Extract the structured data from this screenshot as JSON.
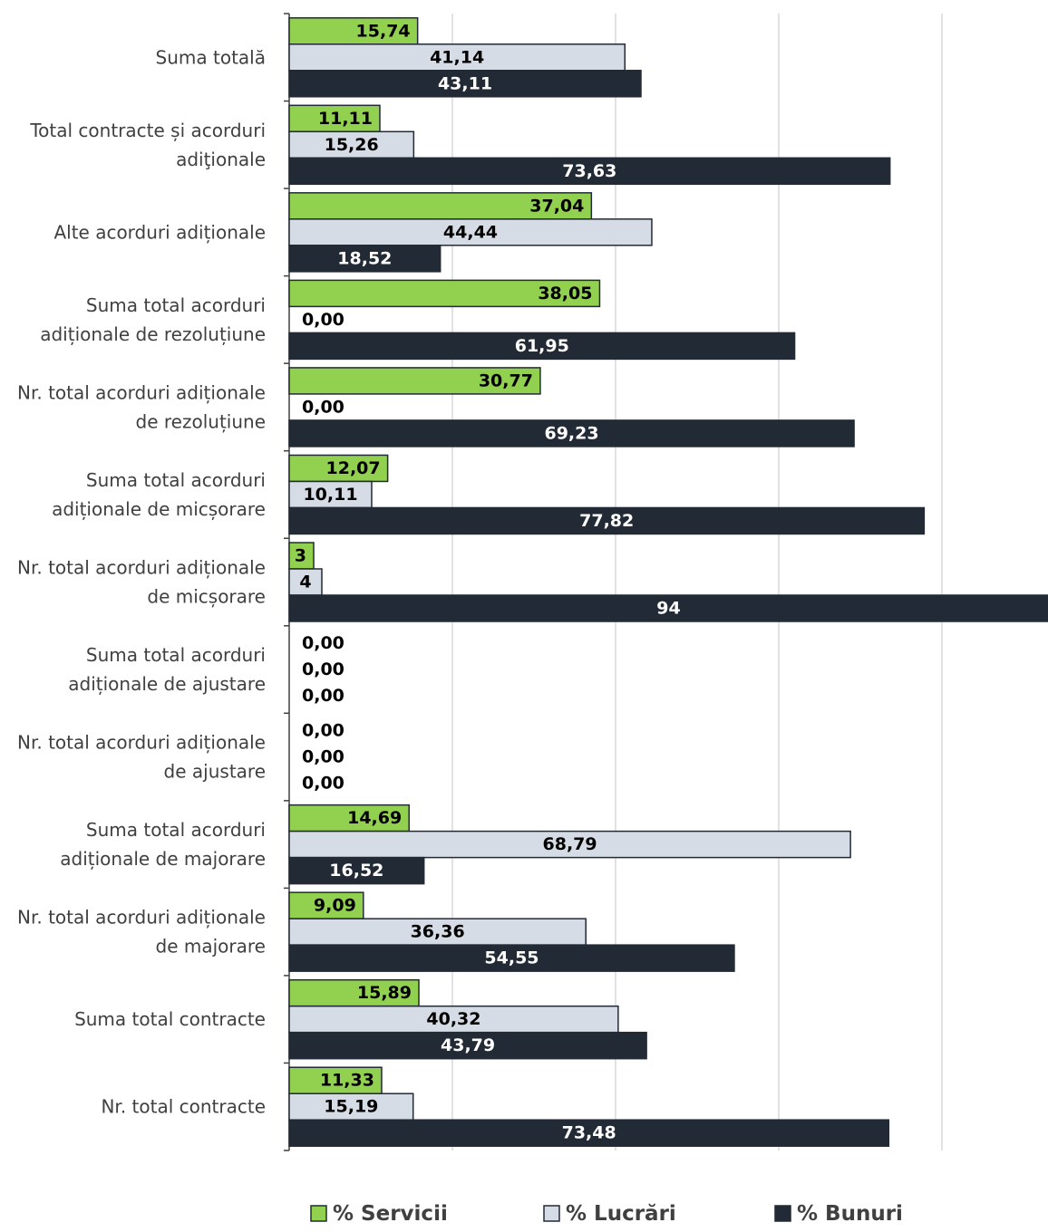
{
  "chart_data": {
    "type": "hbar",
    "categories": [
      "Suma totală",
      "Total contracte și acorduri adiţionale",
      "Alte acorduri adiționale",
      "Suma total acorduri adiționale de rezoluțiune",
      "Nr. total acorduri adiționale de rezoluțiune",
      "Suma total acorduri adiționale de micșorare",
      "Nr. total acorduri adiționale de micșorare",
      "Suma total acorduri adiționale de ajustare",
      "Nr. total acorduri adiționale de ajustare",
      "Suma total acorduri adiționale de majorare",
      "Nr. total acorduri adiționale de majorare",
      "Suma total contracte",
      "Nr. total contracte"
    ],
    "series": [
      {
        "name": "% Servicii",
        "color": "#92d050",
        "values": [
          15.74,
          11.11,
          37.04,
          38.05,
          30.77,
          12.07,
          3,
          0,
          0,
          14.69,
          9.09,
          15.89,
          11.33
        ],
        "value_labels": [
          "15,74",
          "11,11",
          "37,04",
          "38,05",
          "30,77",
          "12,07",
          "3",
          "0,00",
          "0,00",
          "14,69",
          "9,09",
          "15,89",
          "11,33"
        ]
      },
      {
        "name": "% Lucrări",
        "color": "#d6dce5",
        "values": [
          41.14,
          15.26,
          44.44,
          0,
          0,
          10.11,
          4,
          0,
          0,
          68.79,
          36.36,
          40.32,
          15.19
        ],
        "value_labels": [
          "41,14",
          "15,26",
          "44,44",
          "0,00",
          "0,00",
          "10,11",
          "4",
          "0,00",
          "0,00",
          "68,79",
          "36,36",
          "40,32",
          "15,19"
        ]
      },
      {
        "name": "% Bunuri",
        "color": "#222a35",
        "values": [
          43.11,
          73.63,
          18.52,
          61.95,
          69.23,
          77.82,
          94,
          0,
          0,
          16.52,
          54.55,
          43.79,
          73.48
        ],
        "value_labels": [
          "43,11",
          "73,63",
          "18,52",
          "61,95",
          "69,23",
          "77,82",
          "94",
          "0,00",
          "0,00",
          "16,52",
          "54,55",
          "43,79",
          "73,48"
        ]
      }
    ],
    "xlim": [
      0,
      93
    ],
    "xticks": [
      0,
      20,
      40,
      60,
      80
    ],
    "grid": true,
    "legend": "bottom"
  }
}
